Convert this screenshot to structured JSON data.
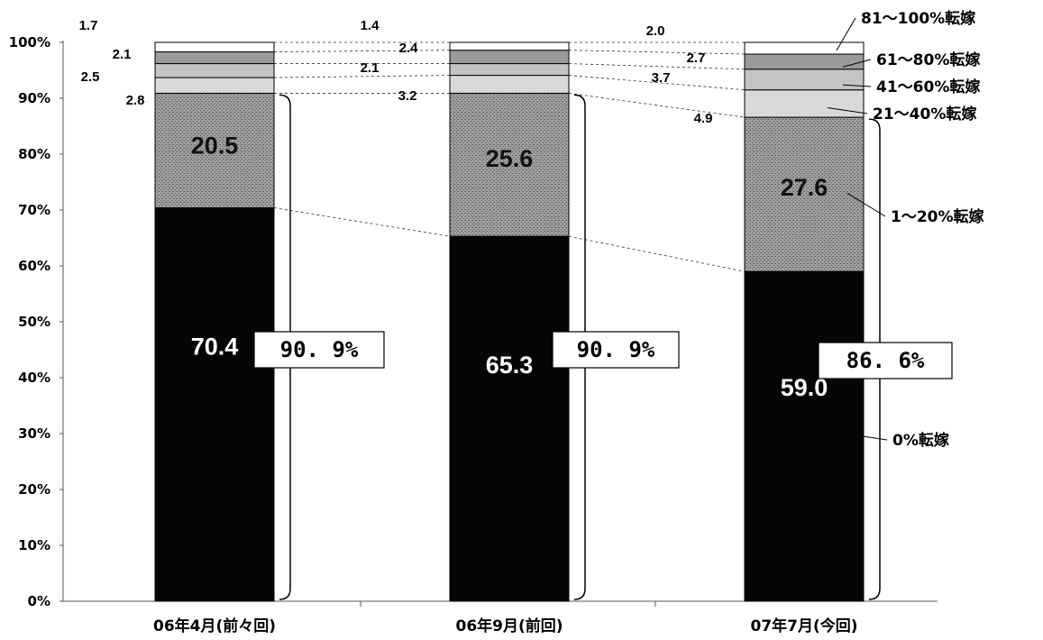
{
  "chart_data": {
    "type": "bar",
    "stacked": true,
    "normalized": true,
    "categories": [
      "06年4月(前々回)",
      "06年9月(前回)",
      "07年7月(今回)"
    ],
    "series": [
      {
        "name": "0%転嫁",
        "values": [
          70.4,
          65.3,
          59.0
        ],
        "color": "#050505"
      },
      {
        "name": "1～20%転嫁",
        "values": [
          20.5,
          25.6,
          27.6
        ],
        "color": "#8c8c8c"
      },
      {
        "name": "21～40%転嫁",
        "values": [
          2.8,
          3.2,
          4.9
        ],
        "color": "#d9d9d9"
      },
      {
        "name": "41～60%転嫁",
        "values": [
          2.5,
          2.1,
          3.7
        ],
        "color": "#c4c4c4"
      },
      {
        "name": "61～80%転嫁",
        "values": [
          2.1,
          2.4,
          2.7
        ],
        "color": "#9a9a9a"
      },
      {
        "name": "81～100%転嫁",
        "values": [
          1.7,
          1.4,
          2.0
        ],
        "color": "#ffffff"
      }
    ],
    "value_labels": [
      [
        "70.4",
        "20.5",
        "2.8",
        "2.5",
        "2.1",
        "1.7"
      ],
      [
        "65.3",
        "25.6",
        "3.2",
        "2.1",
        "2.4",
        "1.4"
      ],
      [
        "59.0",
        "27.6",
        "4.9",
        "3.7",
        "2.7",
        "2.0"
      ]
    ],
    "totals": [
      "90. 9%",
      "90. 9%",
      "86. 6%"
    ],
    "yticks": [
      "0%",
      "10%",
      "20%",
      "30%",
      "40%",
      "50%",
      "60%",
      "70%",
      "80%",
      "90%",
      "100%"
    ],
    "ylim": [
      0,
      100
    ],
    "legend": "right, labels beside last bar"
  }
}
